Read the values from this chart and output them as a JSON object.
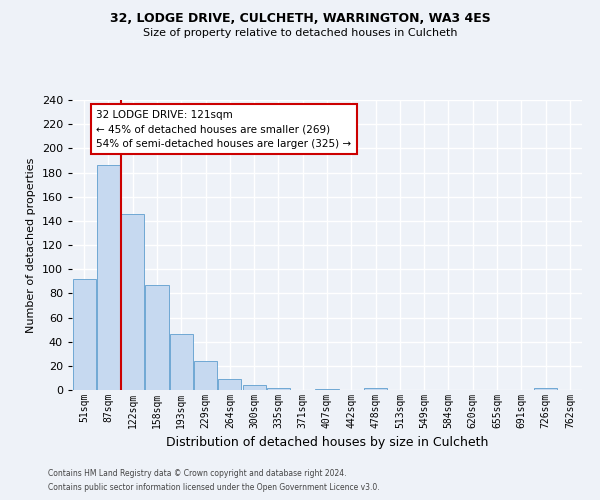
{
  "title1": "32, LODGE DRIVE, CULCHETH, WARRINGTON, WA3 4ES",
  "title2": "Size of property relative to detached houses in Culcheth",
  "xlabel": "Distribution of detached houses by size in Culcheth",
  "ylabel": "Number of detached properties",
  "bin_labels": [
    "51sqm",
    "87sqm",
    "122sqm",
    "158sqm",
    "193sqm",
    "229sqm",
    "264sqm",
    "300sqm",
    "335sqm",
    "371sqm",
    "407sqm",
    "442sqm",
    "478sqm",
    "513sqm",
    "549sqm",
    "584sqm",
    "620sqm",
    "655sqm",
    "691sqm",
    "726sqm",
    "762sqm"
  ],
  "bar_heights": [
    92,
    186,
    146,
    87,
    46,
    24,
    9,
    4,
    2,
    0,
    1,
    0,
    2,
    0,
    0,
    0,
    0,
    0,
    0,
    2,
    0
  ],
  "bar_color": "#c6d9f0",
  "bar_edge_color": "#6fa8d4",
  "ylim": [
    0,
    240
  ],
  "yticks": [
    0,
    20,
    40,
    60,
    80,
    100,
    120,
    140,
    160,
    180,
    200,
    220,
    240
  ],
  "vline_color": "#cc0000",
  "vline_bin_index": 2,
  "annotation_title": "32 LODGE DRIVE: 121sqm",
  "annotation_line1": "← 45% of detached houses are smaller (269)",
  "annotation_line2": "54% of semi-detached houses are larger (325) →",
  "annotation_box_color": "#cc0000",
  "footer1": "Contains HM Land Registry data © Crown copyright and database right 2024.",
  "footer2": "Contains public sector information licensed under the Open Government Licence v3.0.",
  "background_color": "#eef2f8",
  "grid_color": "#ffffff"
}
